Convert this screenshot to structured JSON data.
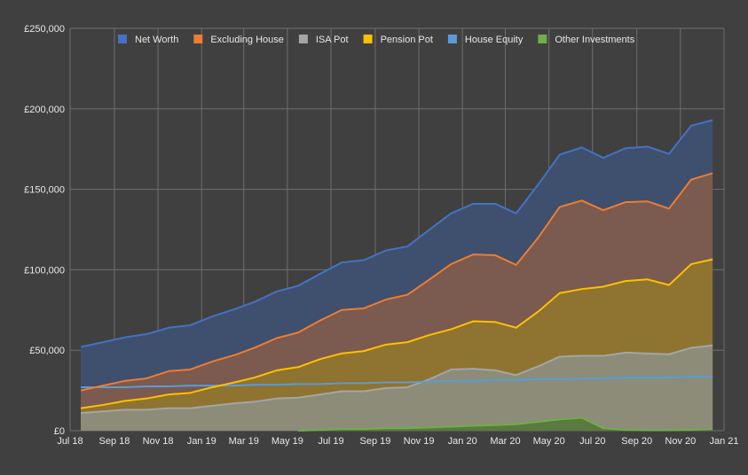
{
  "colors": {
    "background": "#404040",
    "grid": "#6e6e6e",
    "text": "#e8e8e8"
  },
  "chart_data": {
    "type": "area",
    "title": "",
    "xlabel": "",
    "ylabel": "",
    "ylim": [
      0,
      250000
    ],
    "grid": true,
    "legend_position": "top",
    "x_ticks": [
      "Jul 18",
      "Sep 18",
      "Nov 18",
      "Jan 19",
      "Mar 19",
      "May 19",
      "Jul 19",
      "Sep 19",
      "Nov 19",
      "Jan 20",
      "Mar 20",
      "May 20",
      "Jul 20",
      "Sep 20",
      "Nov 20",
      "Jan 21"
    ],
    "y_ticks": [
      "£0",
      "£50,000",
      "£100,000",
      "£150,000",
      "£200,000",
      "£250,000"
    ],
    "y_tick_values": [
      0,
      50000,
      100000,
      150000,
      200000,
      250000
    ],
    "x": [
      "2018-07-01",
      "2018-08-01",
      "2018-09-01",
      "2018-10-01",
      "2018-11-01",
      "2018-12-01",
      "2019-01-01",
      "2019-02-01",
      "2019-03-01",
      "2019-04-01",
      "2019-05-01",
      "2019-06-01",
      "2019-07-01",
      "2019-08-01",
      "2019-09-01",
      "2019-10-01",
      "2019-11-01",
      "2019-12-01",
      "2020-01-01",
      "2020-02-01",
      "2020-03-01",
      "2020-04-01",
      "2020-05-01",
      "2020-06-01",
      "2020-07-01",
      "2020-08-01",
      "2020-09-01",
      "2020-10-01",
      "2020-11-01",
      "2020-12-01"
    ],
    "series": [
      {
        "name": "Net Worth",
        "color": "#4472c4",
        "fill": "#3f4f6e",
        "values": [
          52000,
          55000,
          58000,
          60000,
          64000,
          65500,
          71000,
          75500,
          80000,
          86500,
          90000,
          97500,
          104500,
          106000,
          112000,
          114500,
          125000,
          135000,
          141000,
          141000,
          135000,
          153000,
          171500,
          176000,
          169500,
          175500,
          176500,
          172000,
          189500,
          193000
        ]
      },
      {
        "name": "Excluding House",
        "color": "#ed7d31",
        "fill": "#7b5a4f",
        "values": [
          25000,
          28000,
          31000,
          32500,
          37000,
          38000,
          43000,
          47000,
          51500,
          57500,
          61000,
          68500,
          75000,
          76000,
          81500,
          84500,
          94000,
          103500,
          109500,
          109000,
          103000,
          120000,
          139000,
          143000,
          137000,
          142000,
          142500,
          138000,
          156000,
          160000
        ]
      },
      {
        "name": "ISA Pot",
        "color": "#a5a5a5",
        "fill": "#8c8c78",
        "values": [
          11000,
          12000,
          13000,
          13000,
          14000,
          14000,
          15500,
          17000,
          18000,
          20000,
          20500,
          22500,
          24500,
          24500,
          26500,
          27000,
          32000,
          38000,
          38500,
          37500,
          34500,
          40000,
          46000,
          46500,
          46500,
          48500,
          48000,
          47500,
          51500,
          53000
        ]
      },
      {
        "name": "Pension Pot",
        "color": "#ffc000",
        "fill": "#8f7330",
        "values": [
          14000,
          16000,
          18500,
          20000,
          22500,
          23500,
          27000,
          30000,
          33000,
          37500,
          39500,
          44500,
          48000,
          49500,
          53500,
          55000,
          59500,
          63000,
          68000,
          67500,
          64000,
          74000,
          85500,
          88000,
          89500,
          93000,
          94000,
          90500,
          103500,
          106500
        ]
      },
      {
        "name": "House Equity",
        "color": "#5b9bd5",
        "fill": null,
        "values": [
          27000,
          27000,
          27000,
          27500,
          27500,
          28000,
          28000,
          28000,
          28500,
          28500,
          29000,
          29000,
          29500,
          29500,
          30000,
          30000,
          30500,
          31000,
          31000,
          31500,
          31500,
          32000,
          32000,
          32500,
          32500,
          33000,
          33000,
          33000,
          33500,
          33500
        ]
      },
      {
        "name": "Other Investments",
        "color": "#70ad47",
        "fill": "#5a7a3f",
        "values": [
          null,
          null,
          null,
          null,
          null,
          null,
          null,
          null,
          null,
          null,
          0,
          500,
          1000,
          1000,
          1500,
          1500,
          2000,
          2500,
          3000,
          3500,
          4000,
          5500,
          7000,
          8000,
          1500,
          500,
          300,
          300,
          500,
          1000
        ]
      }
    ]
  }
}
